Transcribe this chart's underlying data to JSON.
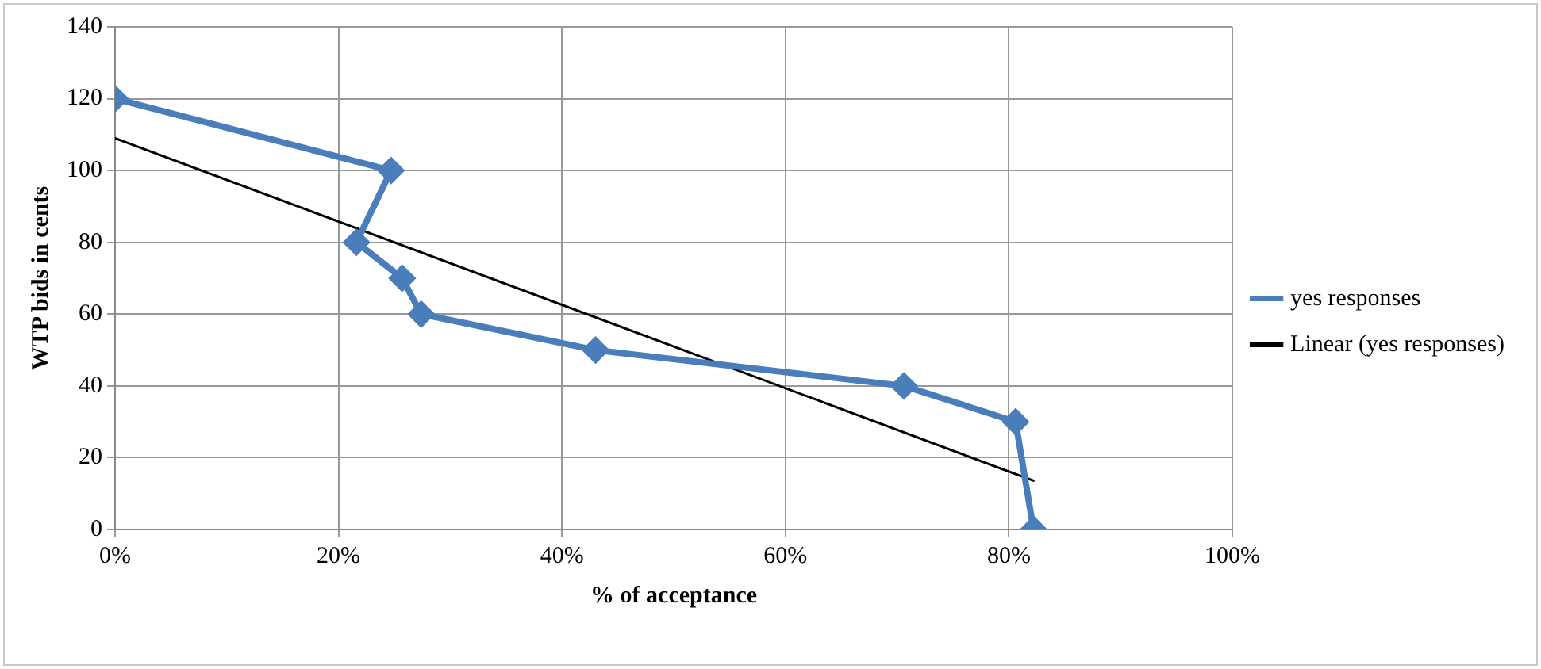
{
  "chart_data": {
    "type": "line",
    "xlabel": "% of acceptance",
    "ylabel": "WTP bids in cents",
    "xlim": [
      0,
      100
    ],
    "xticks": [
      {
        "value": 0,
        "label": "0%"
      },
      {
        "value": 20,
        "label": "20%"
      },
      {
        "value": 40,
        "label": "40%"
      },
      {
        "value": 60,
        "label": "60%"
      },
      {
        "value": 80,
        "label": "80%"
      },
      {
        "value": 100,
        "label": "100%"
      }
    ],
    "ylim": [
      0,
      140
    ],
    "yticks": [
      0,
      20,
      40,
      60,
      80,
      100,
      120,
      140
    ],
    "grid": true,
    "legend": "right",
    "series": [
      {
        "name": "yes responses",
        "color": "#4a7ebb",
        "marker": "diamond",
        "line_style": "solid",
        "x": [
          0,
          24.7,
          21.6,
          25.7,
          27.4,
          43,
          70.6,
          80.6,
          82.2
        ],
        "values": [
          120,
          100,
          80,
          70,
          60,
          50,
          40,
          30,
          0
        ]
      },
      {
        "name": "Linear (yes responses)",
        "type": "line",
        "color": "#000000",
        "marker": "none",
        "line_style": "solid",
        "x": [
          0,
          82.2
        ],
        "values": [
          109,
          13.6
        ]
      }
    ]
  }
}
